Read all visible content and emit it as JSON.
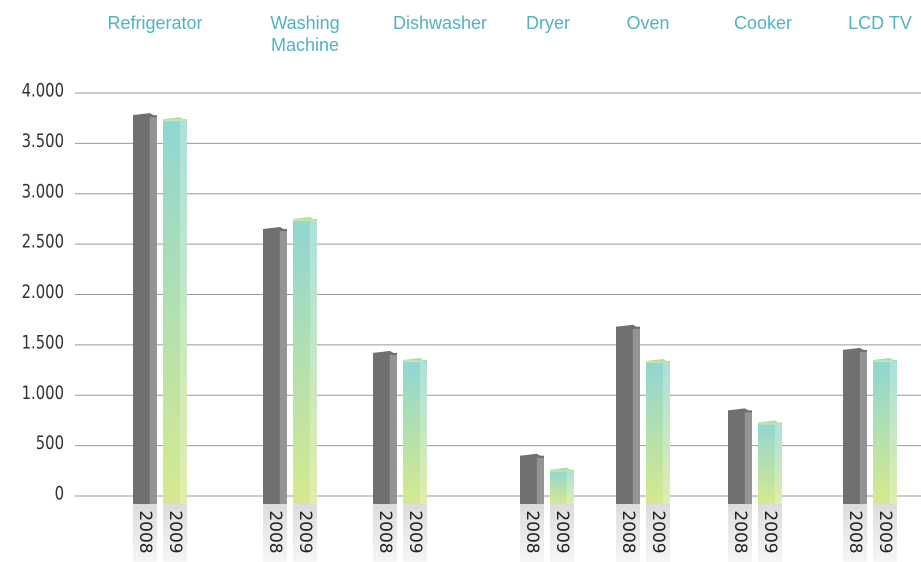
{
  "chart_data": {
    "type": "bar",
    "categories": [
      "Refrigerator",
      "Washing Machine",
      "Dishwasher",
      "Dryer",
      "Oven",
      "Cooker",
      "LCD TV"
    ],
    "series": [
      {
        "name": "2008",
        "color": "#707070",
        "values": [
          3780,
          2650,
          1420,
          400,
          1680,
          850,
          1450
        ]
      },
      {
        "name": "2009",
        "color": "#84d2ce",
        "values": [
          3740,
          2750,
          1350,
          260,
          1340,
          730,
          1350
        ]
      }
    ],
    "ylim": [
      0,
      4000
    ],
    "yticks": [
      0,
      500,
      {
        "value": 1000,
        "label": "1.000"
      },
      {
        "value": 1500,
        "label": "1.500"
      },
      {
        "value": 2000,
        "label": "2.000"
      },
      {
        "value": 2500,
        "label": "2.500"
      },
      {
        "value": 3000,
        "label": "3.000"
      },
      {
        "value": 3500,
        "label": "3.500"
      },
      {
        "value": 4000,
        "label": "4.000"
      }
    ],
    "grid": true
  }
}
